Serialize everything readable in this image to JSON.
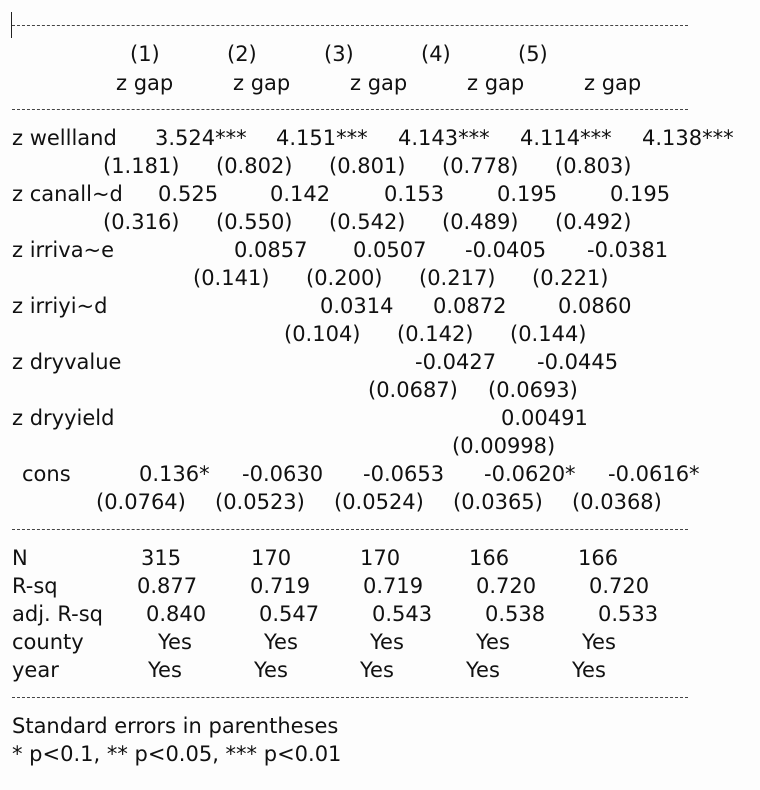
{
  "columns": {
    "numbers": [
      "(1)",
      "(2)",
      "(3)",
      "(4)",
      "(5)"
    ],
    "depvars": [
      "z gap",
      "z gap",
      "z gap",
      "z gap",
      "z gap"
    ]
  },
  "variables": [
    {
      "name": "z wellland",
      "coefs": [
        "3.524***",
        "4.151***",
        "4.143***",
        "4.114***",
        "4.138***"
      ],
      "ses": [
        "(1.181)",
        "(0.802)",
        "(0.801)",
        "(0.778)",
        "(0.803)"
      ]
    },
    {
      "name": "z canall~d",
      "coefs": [
        "0.525",
        "0.142",
        "0.153",
        "0.195",
        "0.195"
      ],
      "ses": [
        "(0.316)",
        "(0.550)",
        "(0.542)",
        "(0.489)",
        "(0.492)"
      ]
    },
    {
      "name": "z irriva~e",
      "coefs": [
        "",
        "0.0857",
        "0.0507",
        "-0.0405",
        "-0.0381"
      ],
      "ses": [
        "",
        "(0.141)",
        "(0.200)",
        "(0.217)",
        "(0.221)"
      ]
    },
    {
      "name": "z irriyi~d",
      "coefs": [
        "",
        "",
        "0.0314",
        "0.0872",
        "0.0860"
      ],
      "ses": [
        "",
        "",
        "(0.104)",
        "(0.142)",
        "(0.144)"
      ]
    },
    {
      "name": "z dryvalue",
      "coefs": [
        "",
        "",
        "",
        "-0.0427",
        "-0.0445"
      ],
      "ses": [
        "",
        "",
        "",
        "(0.0687)",
        "(0.0693)"
      ]
    },
    {
      "name": "z dryyield",
      "coefs": [
        "",
        "",
        "",
        "",
        "0.00491"
      ],
      "ses": [
        "",
        "",
        "",
        "",
        "(0.00998)"
      ]
    },
    {
      "name": "cons",
      "coefs": [
        "0.136*",
        "-0.0630",
        "-0.0653",
        "-0.0620*",
        "-0.0616*"
      ],
      "ses": [
        "(0.0764)",
        "(0.0523)",
        "(0.0524)",
        "(0.0365)",
        "(0.0368)"
      ]
    }
  ],
  "stats": [
    {
      "name": "N",
      "values": [
        "315",
        "170",
        "170",
        "166",
        "166"
      ]
    },
    {
      "name": "R-sq",
      "values": [
        "0.877",
        "0.719",
        "0.719",
        "0.720",
        "0.720"
      ]
    },
    {
      "name": "adj. R-sq",
      "values": [
        "0.840",
        "0.547",
        "0.543",
        "0.538",
        "0.533"
      ]
    },
    {
      "name": "county",
      "values": [
        "Yes",
        "Yes",
        "Yes",
        "Yes",
        "Yes"
      ]
    },
    {
      "name": "year",
      "values": [
        "Yes",
        "Yes",
        "Yes",
        "Yes",
        "Yes"
      ]
    }
  ],
  "notes": {
    "line1": "Standard errors in parentheses",
    "line2": "* p<0.1, ** p<0.05, *** p<0.01"
  }
}
